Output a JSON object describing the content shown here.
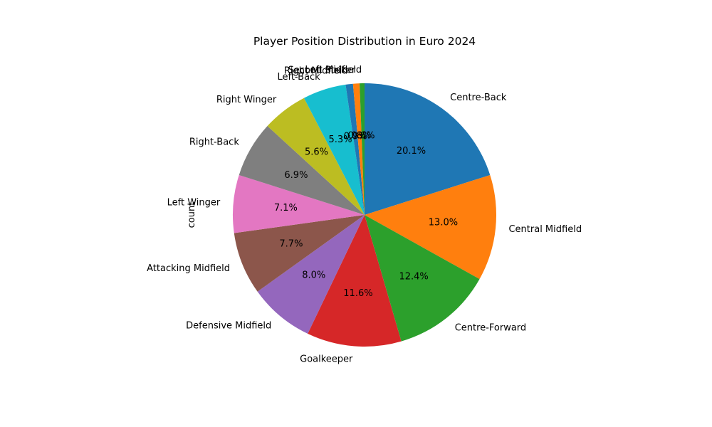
{
  "chart_data": {
    "type": "pie",
    "title": "Player Position Distribution in Euro 2024",
    "ylabel": "count",
    "start_angle_deg": 90,
    "direction": "clockwise",
    "slices": [
      {
        "label": "Centre-Back",
        "percent": 20.1,
        "pct_label": "20.1%",
        "color": "#1f77b4"
      },
      {
        "label": "Central Midfield",
        "percent": 13.0,
        "pct_label": "13.0%",
        "color": "#ff7f0e"
      },
      {
        "label": "Centre-Forward",
        "percent": 12.4,
        "pct_label": "12.4%",
        "color": "#2ca02c"
      },
      {
        "label": "Goalkeeper",
        "percent": 11.6,
        "pct_label": "11.6%",
        "color": "#d62728"
      },
      {
        "label": "Defensive Midfield",
        "percent": 8.0,
        "pct_label": "8.0%",
        "color": "#9467bd"
      },
      {
        "label": "Attacking Midfield",
        "percent": 7.7,
        "pct_label": "7.7%",
        "color": "#8c564b"
      },
      {
        "label": "Left Winger",
        "percent": 7.1,
        "pct_label": "7.1%",
        "color": "#e377c2"
      },
      {
        "label": "Right-Back",
        "percent": 6.9,
        "pct_label": "6.9%",
        "color": "#7f7f7f"
      },
      {
        "label": "Right Winger",
        "percent": 5.6,
        "pct_label": "5.6%",
        "color": "#bcbd22"
      },
      {
        "label": "Left-Back",
        "percent": 5.3,
        "pct_label": "5.3%",
        "color": "#17becf"
      },
      {
        "label": "Right Midfield",
        "percent": 0.9,
        "pct_label": "0.9%",
        "color": "#1f77b4"
      },
      {
        "label": "Second Striker",
        "percent": 0.8,
        "pct_label": "0.8%",
        "color": "#ff7f0e"
      },
      {
        "label": "Left Midfield",
        "percent": 0.6,
        "pct_label": "0.6%",
        "color": "#2ca02c"
      }
    ]
  }
}
